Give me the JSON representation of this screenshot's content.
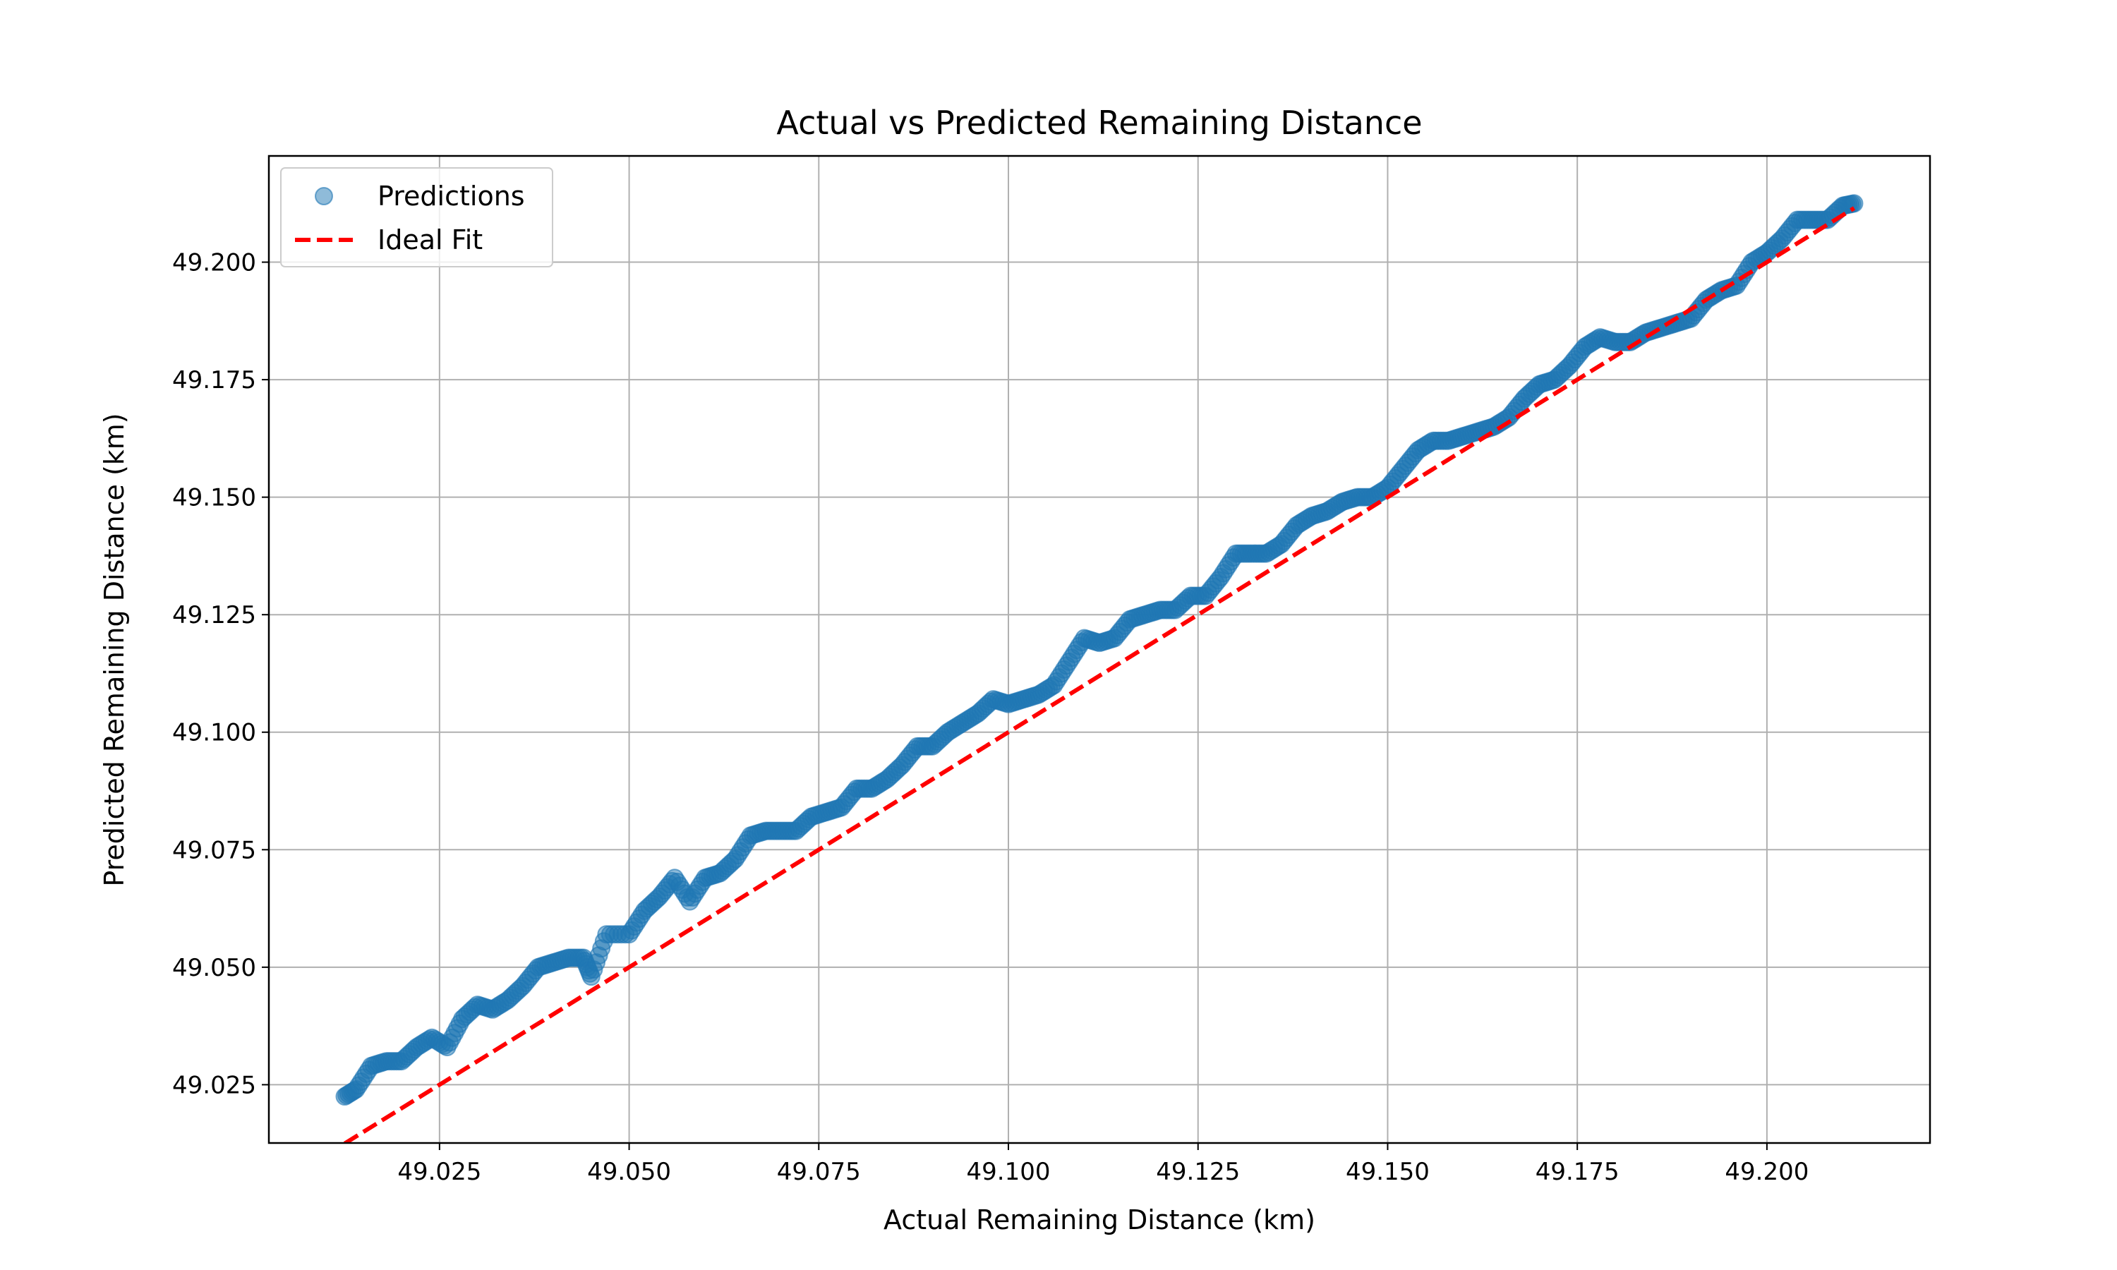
{
  "chart_data": {
    "type": "scatter",
    "title": "Actual vs Predicted Remaining Distance",
    "xlabel": "Actual Remaining Distance (km)",
    "ylabel": "Predicted Remaining Distance (km)",
    "xlim": [
      49.0025,
      49.2215
    ],
    "ylim": [
      49.0126,
      49.2226
    ],
    "xticks": [
      49.025,
      49.05,
      49.075,
      49.1,
      49.125,
      49.15,
      49.175,
      49.2
    ],
    "xtick_labels": [
      "49.025",
      "49.050",
      "49.075",
      "49.100",
      "49.125",
      "49.150",
      "49.175",
      "49.200"
    ],
    "yticks": [
      49.025,
      49.05,
      49.075,
      49.1,
      49.125,
      49.15,
      49.175,
      49.2
    ],
    "ytick_labels": [
      "49.025",
      "49.050",
      "49.075",
      "49.100",
      "49.125",
      "49.150",
      "49.175",
      "49.200"
    ],
    "grid": true,
    "legend_position": "upper-left",
    "series": [
      {
        "name": "Predictions",
        "kind": "scatter",
        "color": "#1f77b4",
        "alpha": 0.5,
        "x": [
          49.0125,
          49.014,
          49.016,
          49.018,
          49.02,
          49.022,
          49.024,
          49.026,
          49.028,
          49.03,
          49.032,
          49.034,
          49.036,
          49.038,
          49.04,
          49.042,
          49.044,
          49.045,
          49.047,
          49.05,
          49.052,
          49.054,
          49.056,
          49.058,
          49.06,
          49.062,
          49.064,
          49.066,
          49.068,
          49.07,
          49.072,
          49.074,
          49.076,
          49.078,
          49.08,
          49.082,
          49.084,
          49.086,
          49.088,
          49.09,
          49.092,
          49.094,
          49.096,
          49.098,
          49.1,
          49.102,
          49.104,
          49.106,
          49.108,
          49.11,
          49.112,
          49.114,
          49.116,
          49.118,
          49.12,
          49.122,
          49.124,
          49.126,
          49.128,
          49.13,
          49.132,
          49.134,
          49.136,
          49.138,
          49.14,
          49.142,
          49.144,
          49.146,
          49.148,
          49.15,
          49.152,
          49.154,
          49.156,
          49.158,
          49.16,
          49.162,
          49.164,
          49.166,
          49.168,
          49.17,
          49.172,
          49.174,
          49.176,
          49.178,
          49.18,
          49.182,
          49.184,
          49.186,
          49.188,
          49.19,
          49.192,
          49.194,
          49.196,
          49.198,
          49.2,
          49.202,
          49.204,
          49.206,
          49.208,
          49.21,
          49.2115
        ],
        "y": [
          49.0225,
          49.024,
          49.029,
          49.03,
          49.03,
          49.033,
          49.035,
          49.033,
          49.039,
          49.042,
          49.041,
          49.043,
          49.046,
          49.05,
          49.051,
          49.052,
          49.052,
          49.048,
          49.057,
          49.057,
          49.062,
          49.065,
          49.069,
          49.064,
          49.069,
          49.07,
          49.073,
          49.078,
          49.079,
          49.079,
          49.079,
          49.082,
          49.083,
          49.084,
          49.088,
          49.088,
          49.09,
          49.093,
          49.097,
          49.097,
          49.1,
          49.102,
          49.104,
          49.107,
          49.106,
          49.107,
          49.108,
          49.11,
          49.115,
          49.12,
          49.119,
          49.12,
          49.124,
          49.125,
          49.126,
          49.126,
          49.129,
          49.129,
          49.133,
          49.138,
          49.138,
          49.138,
          49.14,
          49.144,
          49.146,
          49.147,
          49.149,
          49.15,
          49.15,
          49.152,
          49.156,
          49.16,
          49.162,
          49.162,
          49.163,
          49.164,
          49.165,
          49.167,
          49.171,
          49.174,
          49.175,
          49.178,
          49.182,
          49.184,
          49.183,
          49.183,
          49.185,
          49.186,
          49.187,
          49.188,
          49.192,
          49.194,
          49.195,
          49.2,
          49.202,
          49.205,
          49.209,
          49.209,
          49.209,
          49.212,
          49.2125
        ]
      },
      {
        "name": "Ideal Fit",
        "kind": "line",
        "color": "#ff0000",
        "dashed": true,
        "x": [
          49.0125,
          49.2115
        ],
        "y": [
          49.0125,
          49.2115
        ]
      }
    ]
  }
}
